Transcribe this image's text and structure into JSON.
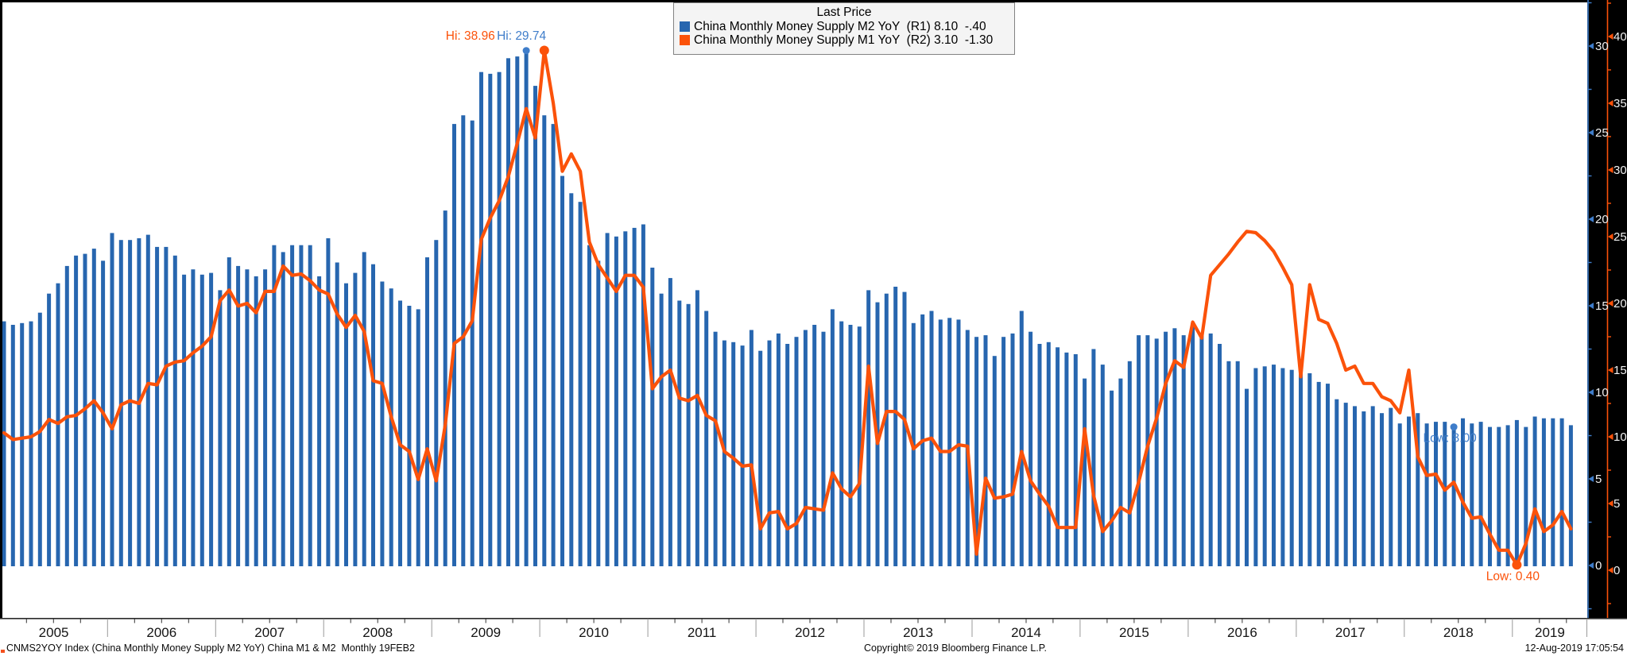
{
  "colors": {
    "bar_blue": "#2766af",
    "accent_blue": "#3f7dca",
    "orange": "#fb520a",
    "panel_bg": "#000000",
    "legend_bg": "#f4f4f4",
    "axis_label_white": "#f2f2f2"
  },
  "legend": {
    "title": "Last Price",
    "series": [
      {
        "label": "China Monthly Money Supply M2 YoY  (R1) 8.10  -.40",
        "swatch": "#2766af"
      },
      {
        "label": "China Monthly Money Supply M1 YoY  (R2) 3.10  -1.30",
        "swatch": "#fb520a"
      }
    ]
  },
  "footer": {
    "left": "CNMS2YOY Index (China Monthly Money Supply M2 YoY) China M1 & M2  Monthly 19FEB2",
    "center": "Copyright© 2019 Bloomberg Finance L.P.",
    "right": "12-Aug-2019 17:05:54"
  },
  "chart_data": {
    "type": "bar",
    "title": "Last Price",
    "x_monthly_start": "2005-01",
    "x_monthly_end": "2019-07",
    "x_years": [
      "2005",
      "2006",
      "2007",
      "2008",
      "2009",
      "2010",
      "2011",
      "2012",
      "2013",
      "2014",
      "2015",
      "2016",
      "2017",
      "2018",
      "2019"
    ],
    "r1_axis": {
      "side": "right",
      "color_ref": "accent_blue",
      "ticks": [
        0,
        5,
        10,
        15,
        20,
        25,
        30
      ],
      "ylim": [
        -3,
        32.6
      ]
    },
    "r2_axis": {
      "side": "right",
      "color_ref": "orange",
      "ticks": [
        0,
        5,
        10,
        15,
        20,
        25,
        30,
        35,
        40
      ],
      "ylim": [
        -3.6,
        42.8
      ]
    },
    "series": [
      {
        "name": "China Monthly Money Supply M2 YoY",
        "axis": "R1",
        "style": "bar",
        "last": 8.1,
        "change": -0.4,
        "values": [
          14.1,
          13.9,
          14.0,
          14.1,
          14.6,
          15.7,
          16.3,
          17.3,
          17.9,
          18.0,
          18.3,
          17.6,
          19.2,
          18.8,
          18.8,
          18.9,
          19.1,
          18.4,
          18.4,
          17.9,
          16.8,
          17.1,
          16.8,
          16.9,
          15.9,
          17.8,
          17.3,
          17.1,
          16.7,
          17.1,
          18.5,
          18.1,
          18.5,
          18.5,
          18.5,
          16.7,
          18.9,
          17.5,
          16.3,
          16.9,
          18.1,
          17.4,
          16.4,
          16.0,
          15.3,
          15.0,
          14.8,
          17.8,
          18.8,
          20.5,
          25.5,
          26.0,
          25.7,
          28.5,
          28.4,
          28.5,
          29.3,
          29.4,
          29.74,
          27.7,
          26.0,
          25.5,
          22.5,
          21.5,
          21.0,
          18.5,
          17.6,
          19.2,
          19.0,
          19.3,
          19.5,
          19.7,
          17.2,
          15.7,
          16.6,
          15.3,
          15.1,
          15.9,
          14.7,
          13.5,
          13.0,
          12.9,
          12.7,
          13.6,
          12.4,
          13.0,
          13.4,
          12.8,
          13.2,
          13.6,
          13.9,
          13.5,
          14.8,
          14.1,
          13.9,
          13.8,
          15.9,
          15.2,
          15.7,
          16.1,
          15.8,
          14.0,
          14.5,
          14.7,
          14.2,
          14.3,
          14.2,
          13.6,
          13.2,
          13.3,
          12.1,
          13.2,
          13.4,
          14.7,
          13.5,
          12.8,
          12.9,
          12.6,
          12.3,
          12.2,
          10.8,
          12.5,
          11.6,
          10.1,
          10.8,
          11.8,
          13.3,
          13.3,
          13.1,
          13.5,
          13.7,
          13.3,
          14.0,
          13.3,
          13.4,
          12.8,
          11.8,
          11.8,
          10.2,
          11.4,
          11.5,
          11.6,
          11.4,
          11.3,
          11.3,
          11.1,
          10.6,
          10.5,
          9.6,
          9.4,
          9.2,
          8.9,
          9.2,
          8.8,
          9.1,
          8.2,
          8.6,
          8.8,
          8.2,
          8.3,
          8.3,
          8.0,
          8.5,
          8.2,
          8.3,
          8.0,
          8.0,
          8.1,
          8.4,
          8.0,
          8.6,
          8.5,
          8.5,
          8.5,
          8.1
        ]
      },
      {
        "name": "China Monthly Money Supply M1 YoY",
        "axis": "R2",
        "style": "line",
        "last": 3.1,
        "change": -1.3,
        "values": [
          10.3,
          9.8,
          9.9,
          10.0,
          10.4,
          11.3,
          11.0,
          11.5,
          11.6,
          12.1,
          12.7,
          11.8,
          10.6,
          12.4,
          12.7,
          12.5,
          14.0,
          13.9,
          15.3,
          15.6,
          15.7,
          16.3,
          16.8,
          17.5,
          20.2,
          21.0,
          19.8,
          20.0,
          19.3,
          20.9,
          20.9,
          22.8,
          22.1,
          22.2,
          21.7,
          21.0,
          20.7,
          19.2,
          18.2,
          19.1,
          17.9,
          14.2,
          14.0,
          11.5,
          9.4,
          8.9,
          6.8,
          9.1,
          6.7,
          10.9,
          17.0,
          17.5,
          18.7,
          24.8,
          26.4,
          27.7,
          29.5,
          32.0,
          34.6,
          32.4,
          38.96,
          35.0,
          29.9,
          31.2,
          29.9,
          24.6,
          22.9,
          21.9,
          20.9,
          22.1,
          22.1,
          21.2,
          13.6,
          14.5,
          15.0,
          12.9,
          12.7,
          13.1,
          11.6,
          11.2,
          8.9,
          8.4,
          7.8,
          7.9,
          3.1,
          4.3,
          4.4,
          3.1,
          3.5,
          4.7,
          4.6,
          4.5,
          7.3,
          6.1,
          5.5,
          6.5,
          15.3,
          9.5,
          11.9,
          11.9,
          11.3,
          9.1,
          9.7,
          9.9,
          8.9,
          8.9,
          9.4,
          9.3,
          1.2,
          6.9,
          5.4,
          5.5,
          5.7,
          8.9,
          6.7,
          5.7,
          4.8,
          3.2,
          3.2,
          3.2,
          10.6,
          5.6,
          2.9,
          3.7,
          4.7,
          4.3,
          6.6,
          9.3,
          11.4,
          14.0,
          15.7,
          15.2,
          18.6,
          17.4,
          22.1,
          22.9,
          23.7,
          24.6,
          25.4,
          25.3,
          24.7,
          23.9,
          22.7,
          21.4,
          14.5,
          21.4,
          18.8,
          18.5,
          17.0,
          15.0,
          15.3,
          14.0,
          14.0,
          13.0,
          12.7,
          11.8,
          15.0,
          8.5,
          7.1,
          7.2,
          6.0,
          6.6,
          5.1,
          3.9,
          4.0,
          2.7,
          1.5,
          1.5,
          0.4,
          2.0,
          4.6,
          2.9,
          3.4,
          4.4,
          3.1
        ]
      }
    ],
    "annotations": [
      {
        "series": "M2",
        "type": "hi",
        "index": 58,
        "value": 29.74,
        "label": "Hi: 29.74"
      },
      {
        "series": "M1",
        "type": "hi",
        "index": 60,
        "value": 38.96,
        "label": "Hi: 38.96"
      },
      {
        "series": "M2",
        "type": "low",
        "index": 161,
        "value": 8.0,
        "label": "Low: 8.00"
      },
      {
        "series": "M1",
        "type": "low",
        "index": 168,
        "value": 0.4,
        "label": "Low: 0.40"
      }
    ],
    "legend_position": "top-center",
    "grid": false
  }
}
